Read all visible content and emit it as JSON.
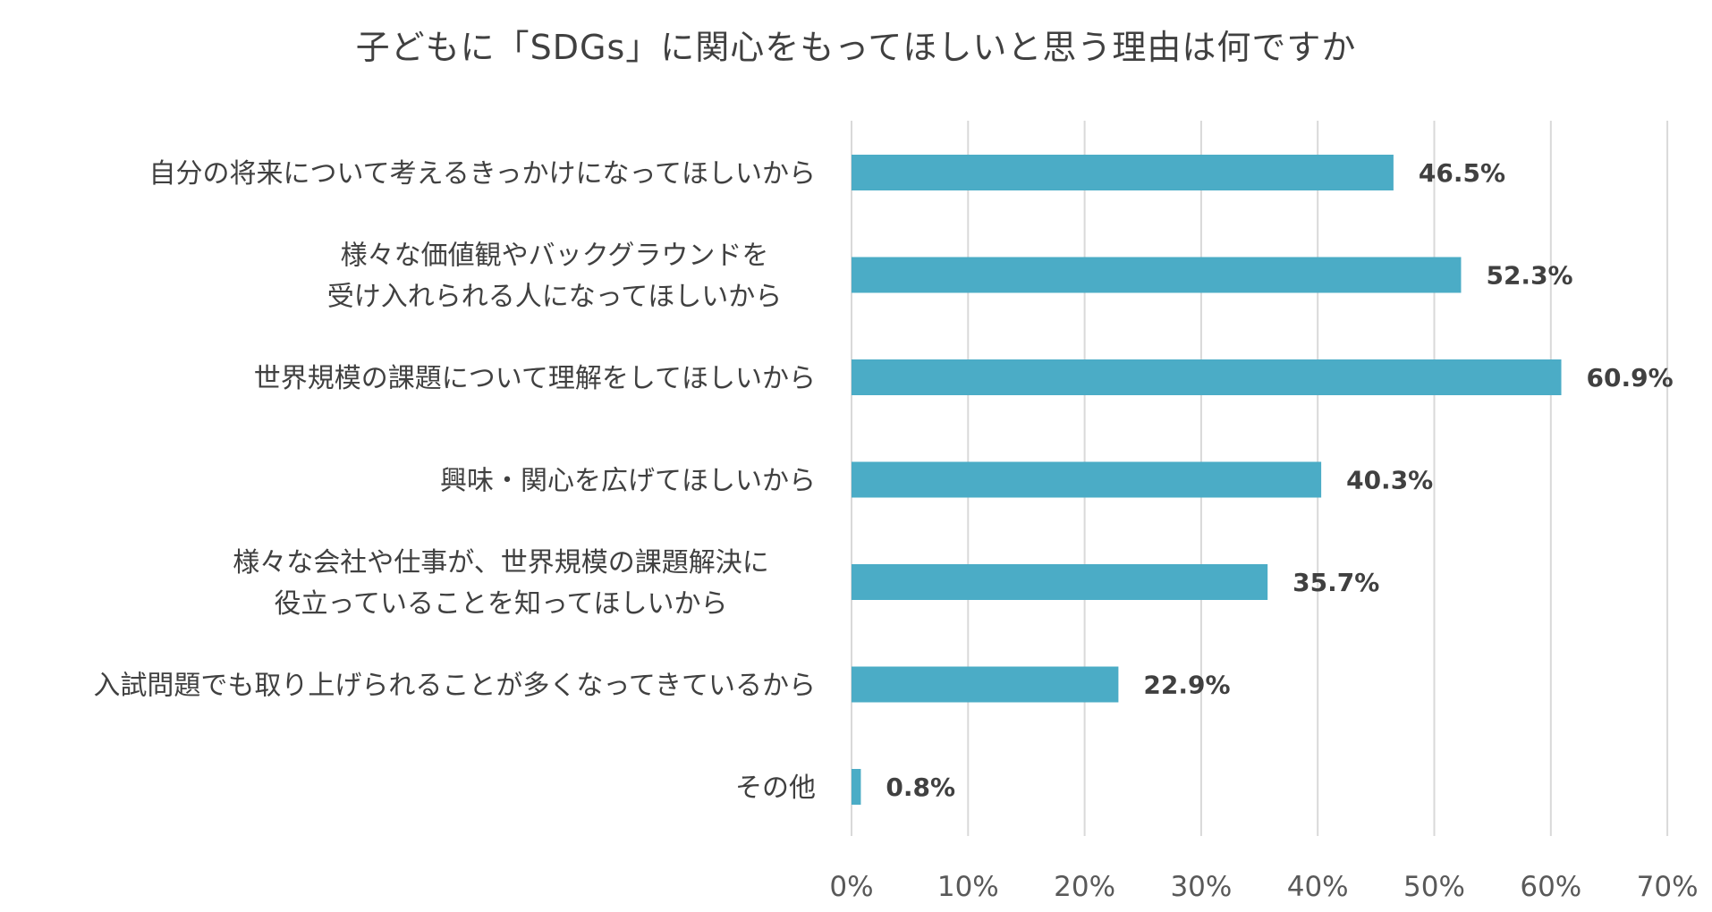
{
  "chart_data": {
    "type": "bar",
    "orientation": "horizontal",
    "title": "子どもに「SDGs」に関心をもってほしいと思う理由は何ですか",
    "categories": [
      [
        "自分の将来について考えるきっかけになってほしいから"
      ],
      [
        "様々な価値観やバックグラウンドを",
        "受け入れられる人になってほしいから"
      ],
      [
        "世界規模の課題について理解をしてほしいから"
      ],
      [
        "興味・関心を広げてほしいから"
      ],
      [
        "様々な会社や仕事が、世界規模の課題解決に",
        "役立っていることを知ってほしいから"
      ],
      [
        "入試問題でも取り上げられることが多くなってきているから"
      ],
      [
        "その他"
      ]
    ],
    "values": [
      46.5,
      52.3,
      60.9,
      40.3,
      35.7,
      22.9,
      0.8
    ],
    "data_labels": [
      "46.5%",
      "52.3%",
      "60.9%",
      "40.3%",
      "35.7%",
      "22.9%",
      "0.8%"
    ],
    "xlim": [
      0,
      70
    ],
    "x_ticks": [
      0,
      10,
      20,
      30,
      40,
      50,
      60,
      70
    ],
    "x_tick_labels": [
      "0%",
      "10%",
      "20%",
      "30%",
      "40%",
      "50%",
      "60%",
      "70%"
    ],
    "grid": "vertical",
    "legend": "none",
    "bar_color": "#4bacc6",
    "grid_color": "#d9d9d9"
  }
}
